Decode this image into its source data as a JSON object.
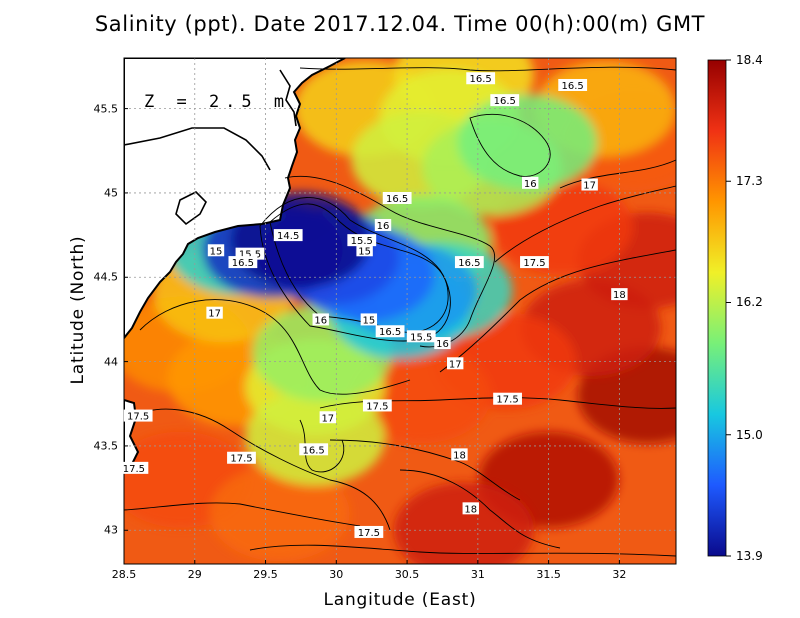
{
  "title": "Salinity (ppt). Date 2017.12.04. Time 00(h):00(m) GMT",
  "depth_label": "Z = 2.5 m",
  "xlabel": "Langitude (East)",
  "ylabel": "Latitude (North)",
  "chart_data": {
    "type": "heatmap",
    "title": "Salinity (ppt). Date 2017.12.04. Time 00(h):00(m) GMT",
    "xlabel": "Langitude (East)",
    "ylabel": "Latitude (North)",
    "xlim": [
      28.5,
      32.4
    ],
    "ylim": [
      42.8,
      45.8
    ],
    "x_ticks": [
      "28.5",
      "29",
      "29.5",
      "30",
      "30.5",
      "31",
      "31.5",
      "32"
    ],
    "x_tick_values": [
      28.5,
      29,
      29.5,
      30,
      30.5,
      31,
      31.5,
      32
    ],
    "y_ticks": [
      "43",
      "43.5",
      "44",
      "44.5",
      "45",
      "45.5"
    ],
    "y_tick_values": [
      43,
      43.5,
      44,
      44.5,
      45,
      45.5
    ],
    "grid": true,
    "colorbar": {
      "labels": [
        "18.4",
        "17.3",
        "16.2",
        "15.0",
        "13.9"
      ],
      "values": [
        18.4,
        17.3,
        16.2,
        15.0,
        13.9
      ],
      "min": 13.9,
      "max": 18.4,
      "colors": [
        "#0a0a8c",
        "#1e5aff",
        "#18c8e0",
        "#78f078",
        "#f0f028",
        "#ff9600",
        "#f03214",
        "#960000"
      ]
    },
    "contour_labels": [
      {
        "text": "16.5",
        "lon": 31.02,
        "lat": 45.68
      },
      {
        "text": "16.5",
        "lon": 31.67,
        "lat": 45.64
      },
      {
        "text": "16.5",
        "lon": 31.19,
        "lat": 45.55
      },
      {
        "text": "16",
        "lon": 31.37,
        "lat": 45.06
      },
      {
        "text": "17",
        "lon": 31.79,
        "lat": 45.05
      },
      {
        "text": "16.5",
        "lon": 30.43,
        "lat": 44.97
      },
      {
        "text": "14.5",
        "lon": 29.66,
        "lat": 44.75
      },
      {
        "text": "15",
        "lon": 29.15,
        "lat": 44.66
      },
      {
        "text": "15.5",
        "lon": 29.39,
        "lat": 44.64
      },
      {
        "text": "16",
        "lon": 30.33,
        "lat": 44.81
      },
      {
        "text": "15.5",
        "lon": 30.18,
        "lat": 44.72
      },
      {
        "text": "15",
        "lon": 30.2,
        "lat": 44.66
      },
      {
        "text": "16.5",
        "lon": 29.34,
        "lat": 44.59
      },
      {
        "text": "16.5",
        "lon": 30.94,
        "lat": 44.59
      },
      {
        "text": "17.5",
        "lon": 31.4,
        "lat": 44.59
      },
      {
        "text": "18",
        "lon": 32.0,
        "lat": 44.4
      },
      {
        "text": "17",
        "lon": 29.14,
        "lat": 44.29
      },
      {
        "text": "16",
        "lon": 29.89,
        "lat": 44.25
      },
      {
        "text": "15",
        "lon": 30.23,
        "lat": 44.25
      },
      {
        "text": "16.5",
        "lon": 30.38,
        "lat": 44.18
      },
      {
        "text": "15.5",
        "lon": 30.6,
        "lat": 44.15
      },
      {
        "text": "16",
        "lon": 30.75,
        "lat": 44.11
      },
      {
        "text": "17",
        "lon": 30.84,
        "lat": 43.99
      },
      {
        "text": "17.5",
        "lon": 31.21,
        "lat": 43.78
      },
      {
        "text": "17.5",
        "lon": 30.29,
        "lat": 43.74
      },
      {
        "text": "17",
        "lon": 29.94,
        "lat": 43.67
      },
      {
        "text": "17.5",
        "lon": 28.6,
        "lat": 43.68
      },
      {
        "text": "16.5",
        "lon": 29.84,
        "lat": 43.48
      },
      {
        "text": "18",
        "lon": 30.87,
        "lat": 43.45
      },
      {
        "text": "17.5",
        "lon": 29.33,
        "lat": 43.43
      },
      {
        "text": "17.5",
        "lon": 28.57,
        "lat": 43.37
      },
      {
        "text": "18",
        "lon": 30.95,
        "lat": 43.13
      },
      {
        "text": "17.5",
        "lon": 30.23,
        "lat": 42.99
      }
    ],
    "fields": [
      {
        "lon": 29.75,
        "lat": 44.72,
        "value": 13.9
      },
      {
        "lon": 29.55,
        "lat": 44.66,
        "value": 14.2
      },
      {
        "lon": 29.95,
        "lat": 44.62,
        "value": 14.4
      },
      {
        "lon": 30.2,
        "lat": 44.52,
        "value": 14.6
      },
      {
        "lon": 30.5,
        "lat": 44.42,
        "value": 14.9
      },
      {
        "lon": 30.45,
        "lat": 44.3,
        "value": 15.2
      },
      {
        "lon": 30.75,
        "lat": 44.42,
        "value": 15.4
      },
      {
        "lon": 29.3,
        "lat": 44.68,
        "value": 15.3
      },
      {
        "lon": 30.6,
        "lat": 44.7,
        "value": 15.9
      },
      {
        "lon": 31.1,
        "lat": 45.15,
        "value": 16.1
      },
      {
        "lon": 31.35,
        "lat": 45.3,
        "value": 15.8
      },
      {
        "lon": 30.6,
        "lat": 45.2,
        "value": 16.3
      },
      {
        "lon": 29.9,
        "lat": 44.05,
        "value": 16.0
      },
      {
        "lon": 29.85,
        "lat": 43.85,
        "value": 16.4
      },
      {
        "lon": 29.85,
        "lat": 43.55,
        "value": 16.3
      },
      {
        "lon": 30.2,
        "lat": 45.5,
        "value": 16.7
      },
      {
        "lon": 30.9,
        "lat": 45.7,
        "value": 16.6
      },
      {
        "lon": 29.2,
        "lat": 44.4,
        "value": 16.8
      },
      {
        "lon": 30.8,
        "lat": 45.45,
        "value": 16.4
      },
      {
        "lon": 31.9,
        "lat": 45.5,
        "value": 16.9
      },
      {
        "lon": 28.9,
        "lat": 44.1,
        "value": 17.2
      },
      {
        "lon": 29.3,
        "lat": 43.9,
        "value": 17.1
      },
      {
        "lon": 28.9,
        "lat": 43.3,
        "value": 17.6
      },
      {
        "lon": 29.6,
        "lat": 43.1,
        "value": 17.4
      },
      {
        "lon": 30.6,
        "lat": 43.8,
        "value": 17.6
      },
      {
        "lon": 31.6,
        "lat": 44.8,
        "value": 17.7
      },
      {
        "lon": 32.1,
        "lat": 45.3,
        "value": 17.5
      },
      {
        "lon": 31.8,
        "lat": 44.2,
        "value": 18.0
      },
      {
        "lon": 32.2,
        "lat": 43.8,
        "value": 18.3
      },
      {
        "lon": 31.5,
        "lat": 43.3,
        "value": 18.2
      },
      {
        "lon": 30.9,
        "lat": 43.0,
        "value": 18.0
      },
      {
        "lon": 32.2,
        "lat": 44.6,
        "value": 18.0
      },
      {
        "lon": 31.2,
        "lat": 44.0,
        "value": 17.7
      }
    ]
  }
}
